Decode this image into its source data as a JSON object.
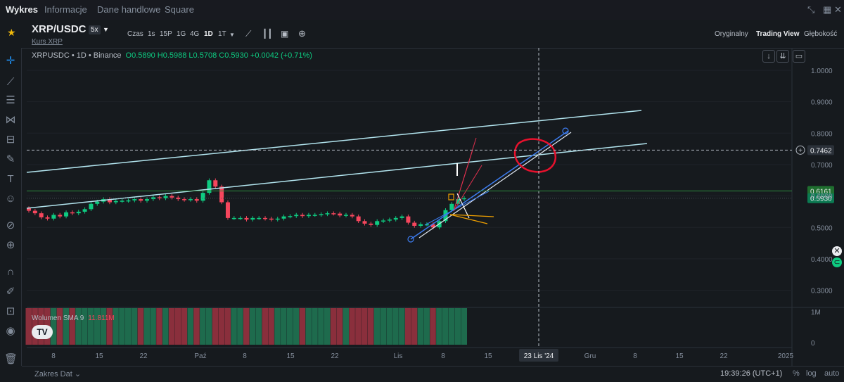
{
  "tabs": [
    "Wykres",
    "Informacje",
    "Dane handlowe",
    "Square"
  ],
  "symbol": {
    "name": "XRP/USDC",
    "leverage": "5x",
    "subtitle": "Kurs XRP"
  },
  "intervals": [
    "Czas",
    "1s",
    "15P",
    "1G",
    "4G",
    "1D",
    "1T"
  ],
  "active_interval": "1D",
  "views": [
    "Oryginalny",
    "Trading View",
    "Głębokość"
  ],
  "active_view": "Trading View",
  "legend": {
    "title": "XRPUSDC • 1D • Binance",
    "ohlc": "O0.5890 H0.5988 L0.5708 C0.5930 +0.0042 (+0.71%)"
  },
  "volume_legend": {
    "label": "Wolumen SMA 9",
    "value": "11.811M"
  },
  "logo_text": "TV",
  "footer": {
    "date_range": "Zakres Dat ⌄",
    "time": "19:39:26 (UTC+1)",
    "percent": "%",
    "log": "log",
    "auto": "auto"
  },
  "colors": {
    "up": "#0ecb81",
    "down": "#f6465d",
    "trendline": "#b2e4ee",
    "support": "#2e8b3d",
    "accent": "#f0b90b"
  },
  "icons": [
    "star-icon",
    "crosshair-icon",
    "trendline-icon",
    "fib-icon",
    "pattern-icon",
    "ruler-icon",
    "brush-icon",
    "text-icon",
    "emoji-icon",
    "measure-icon",
    "zoom-icon",
    "magnet-icon",
    "lock-icon",
    "eye-icon",
    "trash-icon"
  ],
  "chart_data": {
    "type": "candlestick",
    "ylim": [
      0.2,
      1.05
    ],
    "y_ticks": [
      "1.0000",
      "0.9000",
      "0.8000",
      "0.7000",
      "0.6000",
      "0.5000",
      "0.4000",
      "0.3000"
    ],
    "volume_ticks": [
      "1M",
      "0"
    ],
    "x_ticks": [
      "8",
      "15",
      "22",
      "Paź",
      "8",
      "15",
      "22",
      "Lis",
      "8",
      "15",
      "23 Lis '24",
      "Gru",
      "8",
      "15",
      "22",
      "2025"
    ],
    "crosshair_x_label": "23 Lis '24",
    "price_labels": [
      {
        "value": 0.7462,
        "text": "0.7462",
        "kind": "crosshair"
      },
      {
        "value": 0.6161,
        "text": "0.6161",
        "kind": "support"
      },
      {
        "value": 0.593,
        "text": "0.5930",
        "kind": "last"
      }
    ],
    "close": [
      0.553,
      0.545,
      0.532,
      0.528,
      0.54,
      0.535,
      0.548,
      0.545,
      0.55,
      0.558,
      0.575,
      0.582,
      0.59,
      0.58,
      0.584,
      0.585,
      0.586,
      0.59,
      0.585,
      0.59,
      0.596,
      0.593,
      0.6,
      0.595,
      0.59,
      0.588,
      0.59,
      0.585,
      0.61,
      0.65,
      0.63,
      0.58,
      0.53,
      0.53,
      0.53,
      0.525,
      0.53,
      0.53,
      0.528,
      0.525,
      0.528,
      0.535,
      0.536,
      0.54,
      0.536,
      0.54,
      0.54,
      0.542,
      0.545,
      0.544,
      0.538,
      0.54,
      0.535,
      0.52,
      0.512,
      0.508,
      0.52,
      0.522,
      0.525,
      0.53,
      0.535,
      0.515,
      0.505,
      0.51,
      0.51,
      0.5,
      0.52,
      0.555,
      0.575,
      0.59,
      0.593
    ]
  }
}
